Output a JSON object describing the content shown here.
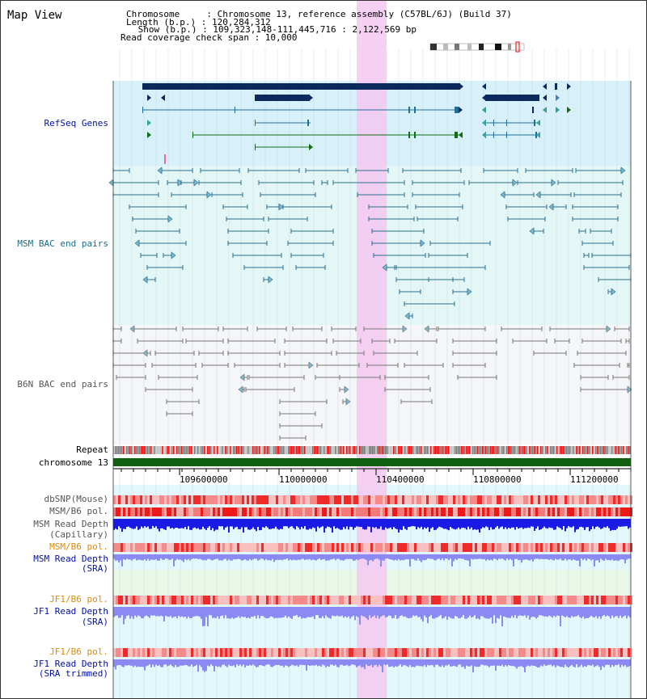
{
  "title": "Map View",
  "header": {
    "chromosome": "Chromosome     : Chromosome 13, reference assembly (C57BL/6J) (Build 37)",
    "length": "Length (b.p.) : 120,284,312",
    "show": " Show (b.p.) : 109,323,148-111,445,716 : 2,122,569 bp",
    "coverage": "Read coverage check span : 10,000"
  },
  "tracks": {
    "refseq": "RefSeq Genes",
    "msm_bac": "MSM BAC end pairs",
    "b6n_bac": "B6N BAC end pairs",
    "repeat": "Repeat",
    "chromosome": "chromosome 13",
    "dbsnp": "dbSNP(Mouse)",
    "msm_b6_pol_1": "MSM/B6 pol.",
    "msm_depth_cap_1": "MSM Read Depth",
    "msm_depth_cap_2": "(Capillary)",
    "msm_b6_pol_2": "MSM/B6 pol.",
    "msm_depth_sra_1": "MSM Read Depth",
    "msm_depth_sra_2": "(SRA)",
    "jf1_b6_pol_1": "JF1/B6 pol.",
    "jf1_depth_sra_1": "JF1 Read Depth",
    "jf1_depth_sra_2": "(SRA)",
    "jf1_b6_pol_2": "JF1/B6 pol.",
    "jf1_depth_trim_1": "JF1 Read Depth",
    "jf1_depth_trim_2": "(SRA trimmed)"
  },
  "ruler": {
    "ticks": [
      "109600000",
      "110000000",
      "110400000",
      "110800000",
      "111200000"
    ]
  },
  "colors": {
    "refseq_bg": "#d7f0fa",
    "msm_bg": "#e4f7f7",
    "b6n_bg": "#f4f6f8",
    "lower_bg": "#e2f8fb",
    "highlight": "#f5c8f1",
    "gene": "#0a2a5e",
    "gene_green": "#107010",
    "bac_msm": "#2a6f8e",
    "bac_b6n": "#777777",
    "chromosome": "#106010",
    "depth_cap": "#1a1ae6",
    "depth_sra": "#8a8af2",
    "label_blue": "#0010a8",
    "label_teal": "#1a6e8a",
    "label_gray": "#555555",
    "label_orange": "#e08a00"
  }
}
